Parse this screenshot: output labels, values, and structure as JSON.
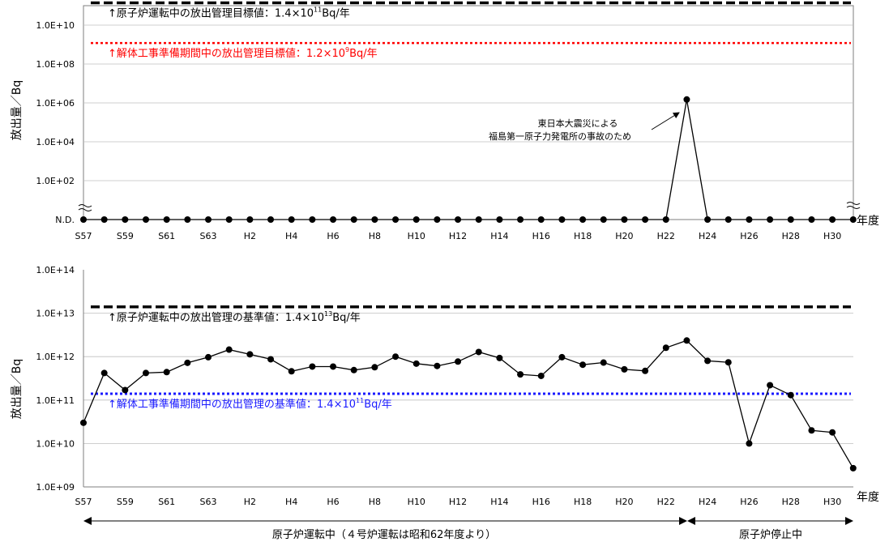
{
  "chart_data": [
    {
      "type": "line",
      "ylabel": "放出量／Bq",
      "xlabel": "年度",
      "yscale": "log",
      "ylim": [
        1,
        100000000000
      ],
      "y_tick_labels": [
        "1.0E+02",
        "1.0E+04",
        "1.0E+06",
        "1.0E+08",
        "1.0E+10"
      ],
      "nd_label": "N.D.",
      "grid": "horizontal",
      "x_tick_labels": [
        "S57",
        "S59",
        "S61",
        "S63",
        "H2",
        "H4",
        "H6",
        "H8",
        "H10",
        "H12",
        "H14",
        "H16",
        "H18",
        "H20",
        "H22",
        "H24",
        "H26",
        "H28",
        "H30"
      ],
      "x_years": [
        "S57",
        "S58",
        "S59",
        "S60",
        "S61",
        "S62",
        "S63",
        "H1",
        "H2",
        "H3",
        "H4",
        "H5",
        "H6",
        "H7",
        "H8",
        "H9",
        "H10",
        "H11",
        "H12",
        "H13",
        "H14",
        "H15",
        "H16",
        "H17",
        "H18",
        "H19",
        "H20",
        "H21",
        "H22",
        "H23",
        "H24",
        "H25",
        "H26",
        "H27",
        "H28",
        "H29",
        "H30",
        "H31"
      ],
      "series": [
        {
          "values": [
            null,
            null,
            null,
            null,
            null,
            null,
            null,
            null,
            null,
            null,
            null,
            null,
            null,
            null,
            null,
            null,
            null,
            null,
            null,
            null,
            null,
            null,
            null,
            null,
            null,
            null,
            null,
            null,
            null,
            1500000,
            null,
            null,
            null,
            null,
            null,
            null,
            null,
            null
          ],
          "color": "#000000"
        }
      ],
      "reference_lines": [
        {
          "value": 140000000000,
          "style": "dashed",
          "color": "#000000",
          "label_pre": "↑原子炉運転中の放出管理目標値：1.4×10",
          "label_exp": "11",
          "label_post": "Bq/年"
        },
        {
          "value": 1200000000,
          "style": "dotted",
          "color": "#ff0000",
          "label_pre": "↑解体工事準備期間中の放出管理目標値：1.2×10",
          "label_exp": "9",
          "label_post": "Bq/年"
        }
      ],
      "annotation": {
        "line1": "東日本大震災による",
        "line2": "福島第一原子力発電所の事故のため"
      }
    },
    {
      "type": "line",
      "ylabel": "放出量／Bq",
      "xlabel": "年度",
      "yscale": "log",
      "ylim": [
        1000000000,
        100000000000000
      ],
      "y_tick_labels": [
        "1.0E+09",
        "1.0E+10",
        "1.0E+11",
        "1.0E+12",
        "1.0E+13",
        "1.0E+14"
      ],
      "grid": "horizontal",
      "x_tick_labels": [
        "S57",
        "S59",
        "S61",
        "S63",
        "H2",
        "H4",
        "H6",
        "H8",
        "H10",
        "H12",
        "H14",
        "H16",
        "H18",
        "H20",
        "H22",
        "H24",
        "H26",
        "H28",
        "H30"
      ],
      "x_years": [
        "S57",
        "S58",
        "S59",
        "S60",
        "S61",
        "S62",
        "S63",
        "H1",
        "H2",
        "H3",
        "H4",
        "H5",
        "H6",
        "H7",
        "H8",
        "H9",
        "H10",
        "H11",
        "H12",
        "H13",
        "H14",
        "H15",
        "H16",
        "H17",
        "H18",
        "H19",
        "H20",
        "H21",
        "H22",
        "H23",
        "H24",
        "H25",
        "H26",
        "H27",
        "H28",
        "H29",
        "H30",
        "H31"
      ],
      "series": [
        {
          "values": [
            30000000000,
            420000000000,
            170000000000,
            420000000000,
            440000000000,
            720000000000,
            970000000000,
            1450000000000,
            1130000000000,
            870000000000,
            460000000000,
            590000000000,
            590000000000,
            490000000000,
            570000000000,
            1000000000000,
            690000000000,
            610000000000,
            770000000000,
            1280000000000,
            930000000000,
            390000000000,
            360000000000,
            970000000000,
            650000000000,
            730000000000,
            510000000000,
            470000000000,
            1600000000000,
            2350000000000,
            800000000000,
            740000000000,
            10000000000,
            220000000000,
            130000000000,
            20000000000,
            18000000000,
            2700000000
          ],
          "color": "#000000"
        }
      ],
      "reference_lines": [
        {
          "value": 14000000000000,
          "style": "dashed",
          "color": "#000000",
          "label_pre": "↑原子炉運転中の放出管理の基準値：1.4×10",
          "label_exp": "13",
          "label_post": "Bq/年"
        },
        {
          "value": 140000000000,
          "style": "dotted",
          "color": "#1a1aff",
          "label_pre": "↑解体工事準備期間中の放出管理の基準値：1.4×10",
          "label_exp": "11",
          "label_post": "Bq/年"
        }
      ]
    }
  ],
  "periods": [
    {
      "label": "原子炉運転中（４号炉運転は昭和62年度より）",
      "from": "S57",
      "to": "H23"
    },
    {
      "label": "原子炉停止中",
      "from": "H23",
      "to": "H31"
    }
  ]
}
